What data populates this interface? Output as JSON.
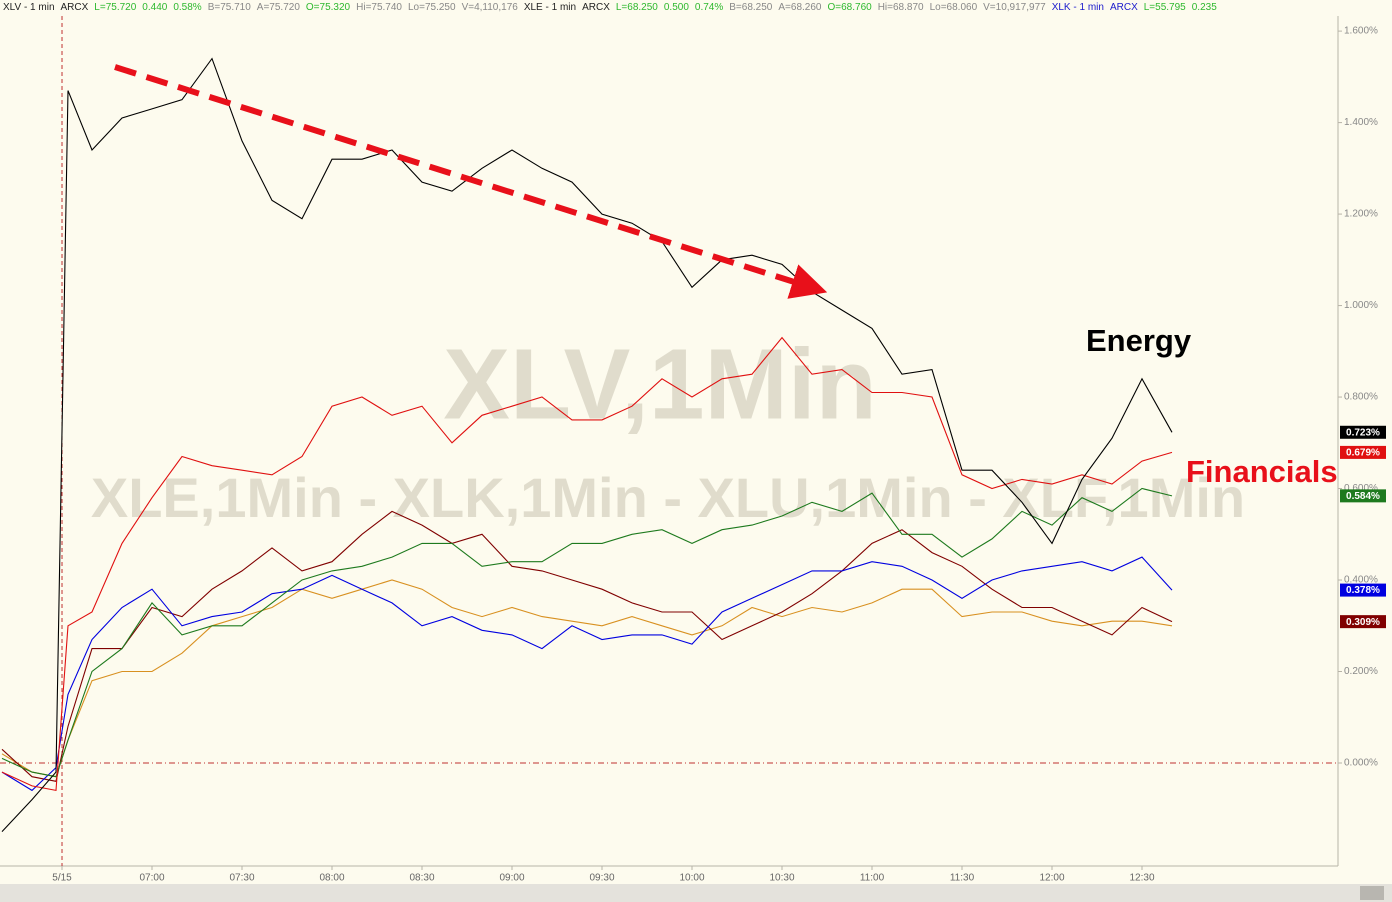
{
  "header": {
    "items": [
      {
        "text": "XLV - 1 min",
        "color": "#222222"
      },
      {
        "text": "ARCX",
        "color": "#222222"
      },
      {
        "text": "L=75.720",
        "color": "#2eb82e"
      },
      {
        "text": "0.440",
        "color": "#2eb82e"
      },
      {
        "text": "0.58%",
        "color": "#2eb82e"
      },
      {
        "text": "B=75.710",
        "color": "#888888"
      },
      {
        "text": "A=75.720",
        "color": "#888888"
      },
      {
        "text": "O=75.320",
        "color": "#2eb82e"
      },
      {
        "text": "Hi=75.740",
        "color": "#888888"
      },
      {
        "text": "Lo=75.250",
        "color": "#888888"
      },
      {
        "text": "V=4,110,176",
        "color": "#888888"
      },
      {
        "text": "XLE - 1 min",
        "color": "#222222"
      },
      {
        "text": "ARCX",
        "color": "#222222"
      },
      {
        "text": "L=68.250",
        "color": "#2eb82e"
      },
      {
        "text": "0.500",
        "color": "#2eb82e"
      },
      {
        "text": "0.74%",
        "color": "#2eb82e"
      },
      {
        "text": "B=68.250",
        "color": "#888888"
      },
      {
        "text": "A=68.260",
        "color": "#888888"
      },
      {
        "text": "O=68.760",
        "color": "#2eb82e"
      },
      {
        "text": "Hi=68.870",
        "color": "#888888"
      },
      {
        "text": "Lo=68.060",
        "color": "#888888"
      },
      {
        "text": "V=10,917,977",
        "color": "#888888"
      },
      {
        "text": "XLK - 1 min",
        "color": "#1a1acc"
      },
      {
        "text": "ARCX",
        "color": "#1a1acc"
      },
      {
        "text": "L=55.795",
        "color": "#2eb82e"
      },
      {
        "text": "0.235",
        "color": "#2eb82e"
      }
    ]
  },
  "chart_data": {
    "type": "line",
    "watermarks": [
      "XLV,1Min",
      "XLE,1Min - XLK,1Min - XLU,1Min - XLF,1Min"
    ],
    "annotations": [
      {
        "text": "Energy",
        "color": "#000000"
      },
      {
        "text": "Financials",
        "color": "#e8101a"
      }
    ],
    "xlim": [
      369.33,
      815.33
    ],
    "ylim": [
      -0.223,
      1.668
    ],
    "xticks": [
      {
        "value": 390,
        "label": "5/15"
      },
      {
        "value": 420,
        "label": "07:00"
      },
      {
        "value": 450,
        "label": "07:30"
      },
      {
        "value": 480,
        "label": "08:00"
      },
      {
        "value": 510,
        "label": "08:30"
      },
      {
        "value": 540,
        "label": "09:00"
      },
      {
        "value": 570,
        "label": "09:30"
      },
      {
        "value": 600,
        "label": "10:00"
      },
      {
        "value": 630,
        "label": "10:30"
      },
      {
        "value": 660,
        "label": "11:00"
      },
      {
        "value": 690,
        "label": "11:30"
      },
      {
        "value": 720,
        "label": "12:00"
      },
      {
        "value": 750,
        "label": "12:30"
      }
    ],
    "yticks": [
      {
        "value": 0,
        "label": "0.000%"
      },
      {
        "value": 0.2,
        "label": "0.200%"
      },
      {
        "value": 0.4,
        "label": "0.400%"
      },
      {
        "value": 0.6,
        "label": "0.600%"
      },
      {
        "value": 0.8,
        "label": "0.800%"
      },
      {
        "value": 1.0,
        "label": "1.000%"
      },
      {
        "value": 1.2,
        "label": "1.200%"
      },
      {
        "value": 1.4,
        "label": "1.400%"
      },
      {
        "value": 1.6,
        "label": "1.600%"
      }
    ],
    "x": [
      370,
      380,
      388,
      392,
      400,
      410,
      420,
      430,
      440,
      450,
      460,
      470,
      480,
      490,
      500,
      510,
      520,
      530,
      540,
      550,
      560,
      570,
      580,
      590,
      600,
      610,
      620,
      630,
      640,
      650,
      660,
      670,
      680,
      690,
      700,
      710,
      720,
      730,
      740,
      750,
      760
    ],
    "series": [
      {
        "color": "#d89020",
        "values": [
          0.02,
          -0.02,
          -0.03,
          0.05,
          0.18,
          0.2,
          0.2,
          0.24,
          0.3,
          0.32,
          0.34,
          0.38,
          0.36,
          0.38,
          0.4,
          0.38,
          0.34,
          0.32,
          0.34,
          0.32,
          0.31,
          0.3,
          0.32,
          0.3,
          0.28,
          0.3,
          0.34,
          0.32,
          0.34,
          0.33,
          0.35,
          0.38,
          0.38,
          0.32,
          0.33,
          0.33,
          0.31,
          0.3,
          0.31,
          0.31,
          0.3
        ]
      },
      {
        "color": "#800000",
        "last_label": "0.309%",
        "values": [
          0.03,
          -0.03,
          -0.04,
          0.08,
          0.25,
          0.25,
          0.34,
          0.32,
          0.38,
          0.42,
          0.47,
          0.42,
          0.44,
          0.5,
          0.55,
          0.52,
          0.48,
          0.5,
          0.43,
          0.42,
          0.4,
          0.38,
          0.35,
          0.33,
          0.33,
          0.27,
          0.3,
          0.33,
          0.37,
          0.42,
          0.48,
          0.51,
          0.46,
          0.43,
          0.38,
          0.34,
          0.34,
          0.31,
          0.28,
          0.34,
          0.309
        ]
      },
      {
        "color": "#0000e0",
        "last_label": "0.378%",
        "values": [
          -0.02,
          -0.06,
          -0.01,
          0.15,
          0.27,
          0.34,
          0.38,
          0.3,
          0.32,
          0.33,
          0.37,
          0.38,
          0.41,
          0.38,
          0.35,
          0.3,
          0.32,
          0.29,
          0.28,
          0.25,
          0.3,
          0.27,
          0.28,
          0.28,
          0.26,
          0.33,
          0.36,
          0.39,
          0.42,
          0.42,
          0.44,
          0.43,
          0.4,
          0.36,
          0.4,
          0.42,
          0.43,
          0.44,
          0.42,
          0.45,
          0.378
        ]
      },
      {
        "color": "#1e7a1e",
        "last_label": "0.584%",
        "values": [
          0.01,
          -0.02,
          -0.03,
          0.05,
          0.2,
          0.25,
          0.35,
          0.28,
          0.3,
          0.3,
          0.35,
          0.4,
          0.42,
          0.43,
          0.45,
          0.48,
          0.48,
          0.43,
          0.44,
          0.44,
          0.48,
          0.48,
          0.5,
          0.51,
          0.48,
          0.51,
          0.52,
          0.54,
          0.57,
          0.55,
          0.59,
          0.5,
          0.5,
          0.45,
          0.49,
          0.55,
          0.52,
          0.58,
          0.55,
          0.6,
          0.584
        ]
      },
      {
        "color": "#e01010",
        "last_label": "0.679%",
        "values": [
          -0.02,
          -0.05,
          -0.06,
          0.3,
          0.33,
          0.48,
          0.58,
          0.67,
          0.65,
          0.64,
          0.63,
          0.67,
          0.78,
          0.8,
          0.76,
          0.78,
          0.7,
          0.76,
          0.78,
          0.8,
          0.75,
          0.75,
          0.78,
          0.84,
          0.8,
          0.84,
          0.85,
          0.93,
          0.85,
          0.86,
          0.81,
          0.81,
          0.8,
          0.63,
          0.6,
          0.62,
          0.61,
          0.63,
          0.61,
          0.66,
          0.679
        ]
      },
      {
        "color": "#000000",
        "last_label": "0.723%",
        "values": [
          -0.15,
          -0.08,
          -0.02,
          1.47,
          1.34,
          1.41,
          1.43,
          1.45,
          1.54,
          1.36,
          1.23,
          1.19,
          1.32,
          1.32,
          1.34,
          1.27,
          1.25,
          1.3,
          1.34,
          1.3,
          1.27,
          1.2,
          1.18,
          1.14,
          1.04,
          1.1,
          1.11,
          1.09,
          1.03,
          0.99,
          0.95,
          0.85,
          0.86,
          0.64,
          0.64,
          0.57,
          0.48,
          0.62,
          0.71,
          0.84,
          0.723
        ]
      }
    ]
  }
}
